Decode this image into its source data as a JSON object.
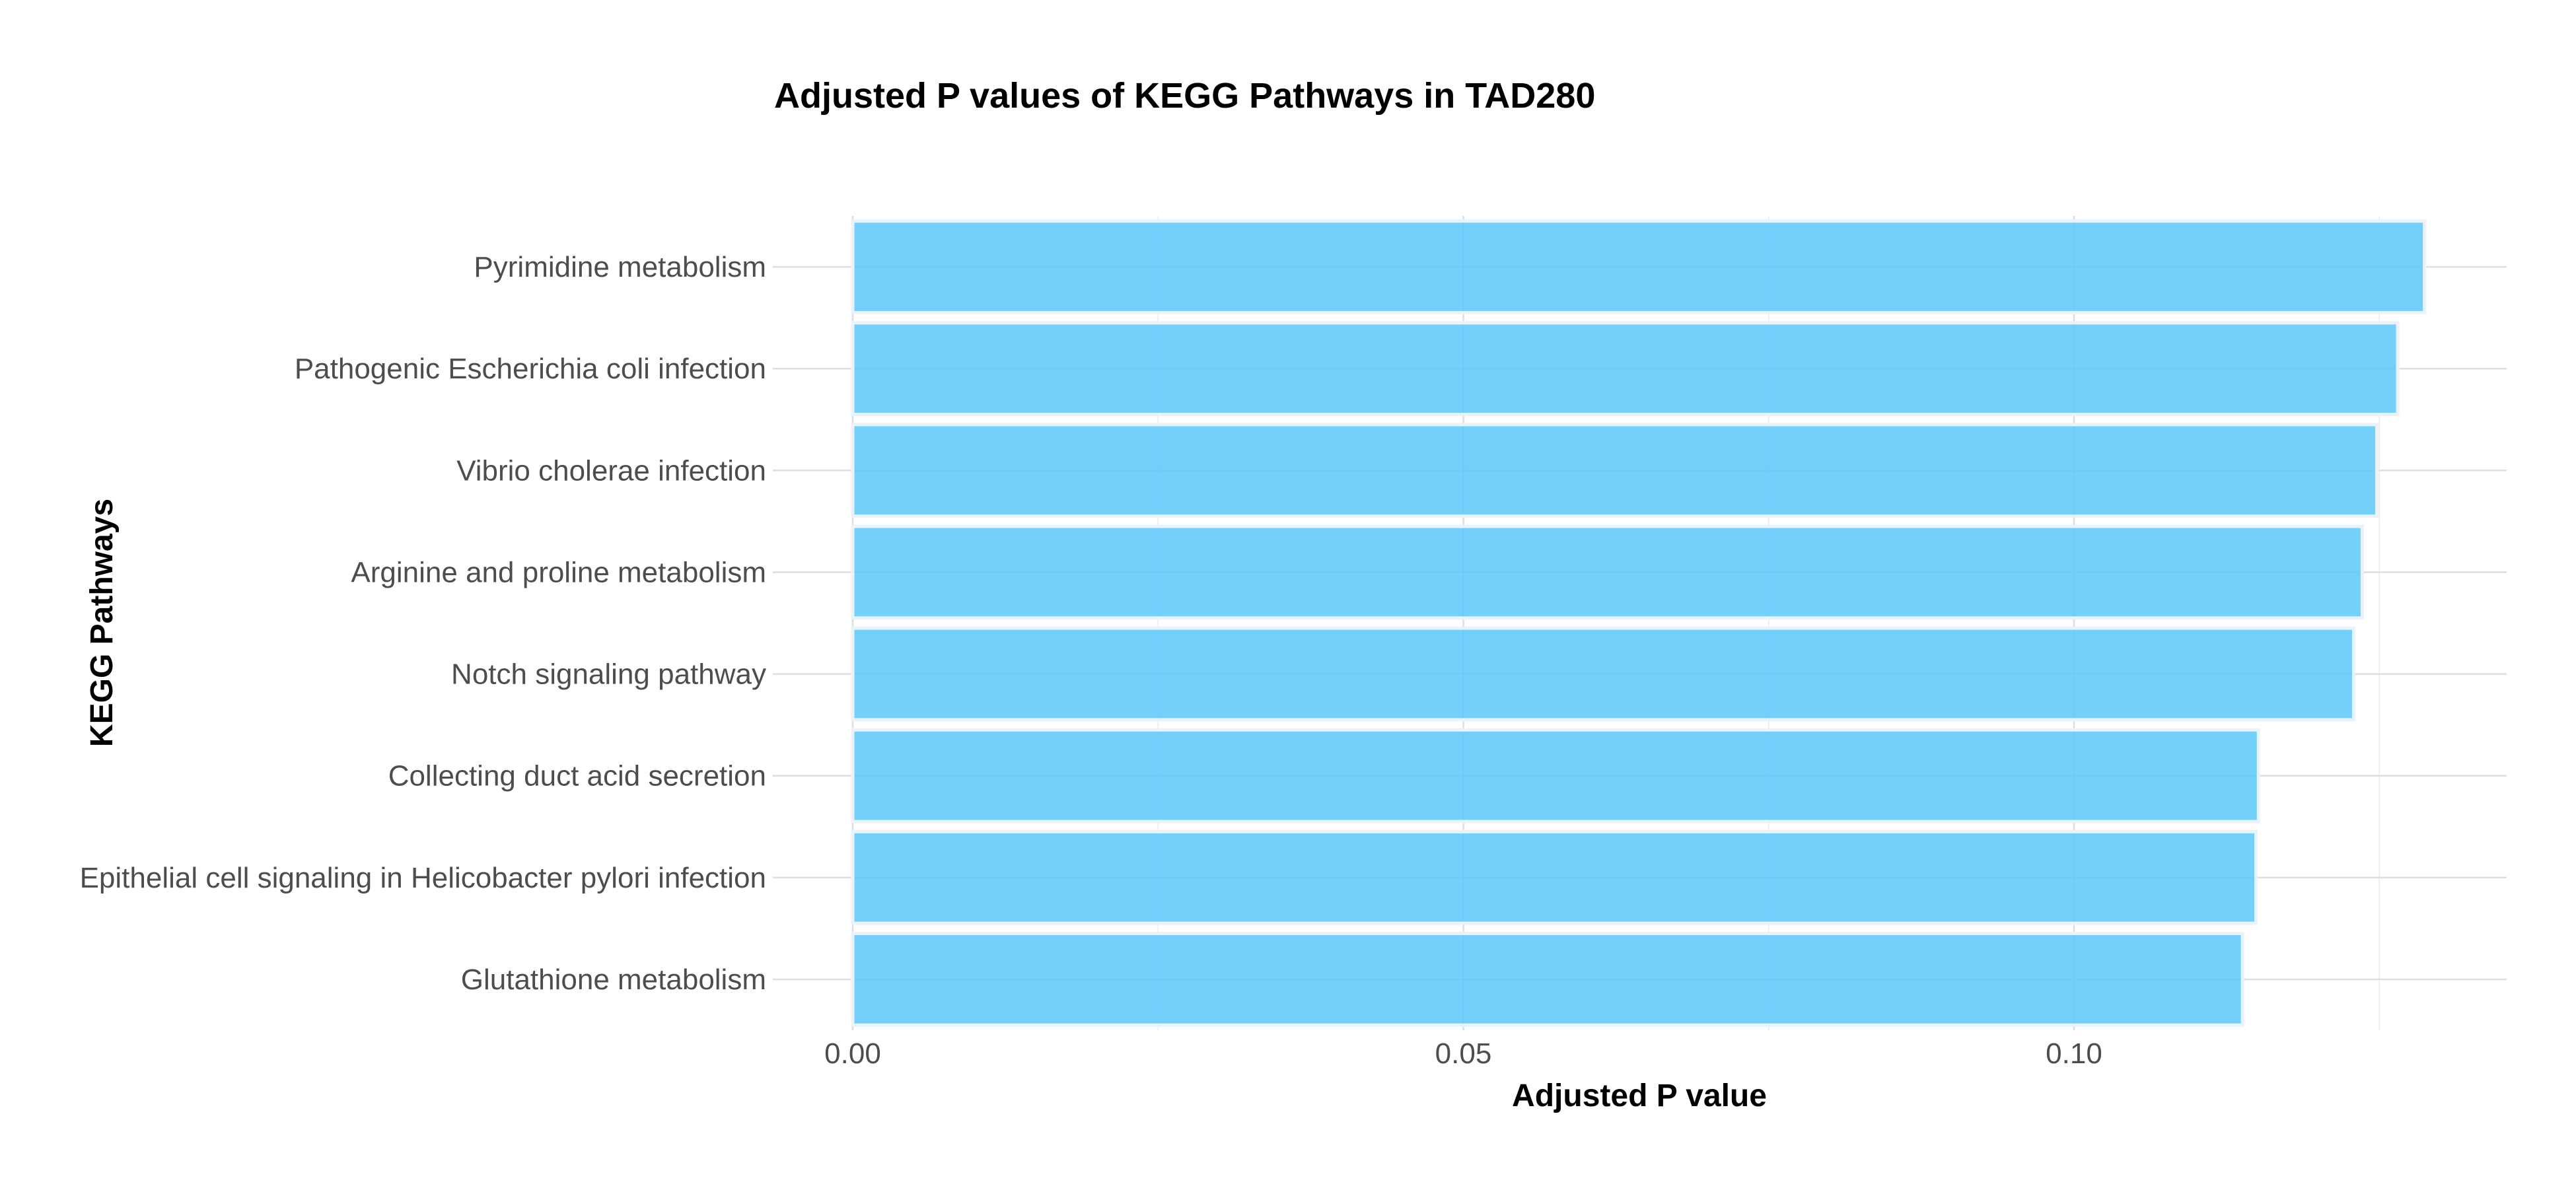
{
  "colors": {
    "bar_fill": "#5ac8fa",
    "bar_outline": "#eaf2fa",
    "grid_major": "#dedede",
    "grid_minor": "#ececec",
    "tick_text": "#4d4d4d",
    "title_text": "#000000"
  },
  "chart_data": {
    "type": "bar",
    "orientation": "horizontal",
    "title": "Adjusted P values of KEGG Pathways in TAD280",
    "xlabel": "Adjusted P value",
    "ylabel": "KEGG Pathways",
    "categories": [
      "Pyrimidine metabolism",
      "Pathogenic Escherichia coli infection",
      "Vibrio cholerae infection",
      "Arginine and proline metabolism",
      "Notch signaling pathway",
      "Collecting duct acid secretion",
      "Epithelial cell signaling in Helicobacter pylori infection",
      "Glutathione metabolism"
    ],
    "values": [
      0.1287,
      0.1265,
      0.1248,
      0.1236,
      0.1229,
      0.1151,
      0.1149,
      0.1138
    ],
    "xlim": [
      0.0,
      0.135
    ],
    "xticks": [
      0.0,
      0.05,
      0.1
    ],
    "xtick_labels": [
      "0.00",
      "0.05",
      "0.10"
    ],
    "x_minor_ticks": [
      0.025,
      0.075,
      0.125
    ],
    "grid": true,
    "legend": "none"
  }
}
